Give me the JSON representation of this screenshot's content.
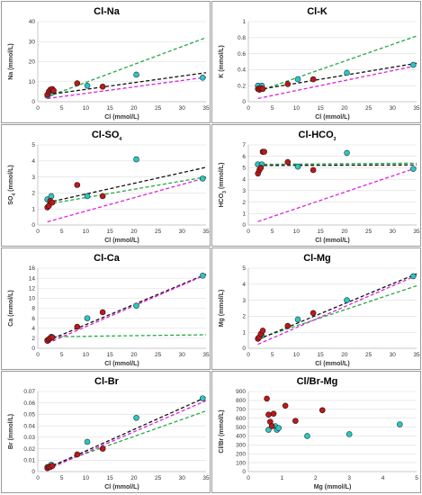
{
  "chart_data": [
    {
      "type": "scatter",
      "title": "Cl-Na",
      "xlabel": "Cl (mmol/L)",
      "ylabel": "Na (mmol/L)",
      "xlim": [
        0,
        35
      ],
      "ylim": [
        0,
        40
      ],
      "xticks": [
        "0",
        "5",
        "10",
        "15",
        "20",
        "25",
        "30",
        "35"
      ],
      "yticks": [
        "0",
        "10",
        "20",
        "30",
        "40"
      ],
      "red_points": [
        [
          2.0,
          3.5
        ],
        [
          2.3,
          5.0
        ],
        [
          2.6,
          6.0
        ],
        [
          3.0,
          6.3
        ],
        [
          3.3,
          5.5
        ],
        [
          8.2,
          9.2
        ],
        [
          13.5,
          7.5
        ]
      ],
      "cyan_points": [
        [
          2.0,
          3.0
        ],
        [
          2.8,
          4.3
        ],
        [
          10.3,
          8.0
        ],
        [
          20.5,
          13.5
        ],
        [
          34.3,
          12.0
        ]
      ],
      "lines": [
        {
          "color": "#22aa44",
          "x": [
            2,
            35
          ],
          "y": [
            2.5,
            32
          ]
        },
        {
          "color": "#111111",
          "x": [
            2,
            35
          ],
          "y": [
            3.5,
            14.5
          ]
        },
        {
          "color": "#dd22dd",
          "x": [
            2,
            35
          ],
          "y": [
            1.6,
            12.2
          ]
        }
      ]
    },
    {
      "type": "scatter",
      "title": "Cl-K",
      "xlabel": "Cl (mmol/L)",
      "ylabel": "K (mmol/L)",
      "xlim": [
        0,
        35
      ],
      "ylim": [
        0,
        1
      ],
      "xticks": [
        "0",
        "5",
        "10",
        "15",
        "20",
        "25",
        "30",
        "35"
      ],
      "yticks": [
        "0",
        "0.2",
        "0.4",
        "0.6",
        "0.8",
        "1"
      ],
      "red_points": [
        [
          2.0,
          0.16
        ],
        [
          2.3,
          0.15
        ],
        [
          2.6,
          0.17
        ],
        [
          3.0,
          0.16
        ],
        [
          8.2,
          0.22
        ],
        [
          13.5,
          0.28
        ]
      ],
      "cyan_points": [
        [
          2.0,
          0.2
        ],
        [
          2.8,
          0.2
        ],
        [
          10.3,
          0.28
        ],
        [
          20.5,
          0.36
        ],
        [
          34.3,
          0.46
        ]
      ],
      "lines": [
        {
          "color": "#22aa44",
          "x": [
            2,
            35
          ],
          "y": [
            0.13,
            0.82
          ]
        },
        {
          "color": "#111111",
          "x": [
            2,
            35
          ],
          "y": [
            0.15,
            0.48
          ]
        },
        {
          "color": "#dd22dd",
          "x": [
            2,
            35
          ],
          "y": [
            0.04,
            0.45
          ]
        }
      ]
    },
    {
      "type": "scatter",
      "title": "Cl-SO4",
      "xlabel": "Cl (mmol/L)",
      "ylabel": "SO4 (mmol/L)",
      "xlim": [
        0,
        35
      ],
      "ylim": [
        0,
        5
      ],
      "xticks": [
        "0",
        "5",
        "10",
        "15",
        "20",
        "25",
        "30",
        "35"
      ],
      "yticks": [
        "0",
        "1",
        "2",
        "3",
        "4",
        "5"
      ],
      "red_points": [
        [
          2.0,
          1.1
        ],
        [
          2.3,
          1.2
        ],
        [
          2.6,
          1.5
        ],
        [
          3.0,
          1.4
        ],
        [
          8.2,
          2.5
        ],
        [
          13.5,
          1.8
        ]
      ],
      "cyan_points": [
        [
          2.0,
          1.6
        ],
        [
          2.8,
          1.8
        ],
        [
          10.3,
          1.8
        ],
        [
          20.5,
          4.1
        ],
        [
          34.3,
          2.9
        ]
      ],
      "lines": [
        {
          "color": "#22aa44",
          "x": [
            2,
            35
          ],
          "y": [
            1.3,
            3.0
          ]
        },
        {
          "color": "#111111",
          "x": [
            2,
            35
          ],
          "y": [
            1.4,
            3.6
          ]
        },
        {
          "color": "#dd22dd",
          "x": [
            2,
            35
          ],
          "y": [
            0.2,
            2.95
          ]
        }
      ]
    },
    {
      "type": "scatter",
      "title": "Cl-HCO3",
      "xlabel": "Cl (mmol/L)",
      "ylabel": "HCO3 (mmol/L)",
      "xlim": [
        0,
        35
      ],
      "ylim": [
        0,
        7
      ],
      "xticks": [
        "0",
        "5",
        "10",
        "15",
        "20",
        "25",
        "30",
        "35"
      ],
      "yticks": [
        "0",
        "1",
        "2",
        "3",
        "4",
        "5",
        "6",
        "7"
      ],
      "red_points": [
        [
          2.0,
          4.5
        ],
        [
          2.3,
          4.8
        ],
        [
          2.6,
          5.0
        ],
        [
          3.0,
          6.4
        ],
        [
          3.3,
          6.4
        ],
        [
          8.2,
          5.5
        ],
        [
          13.5,
          4.8
        ]
      ],
      "cyan_points": [
        [
          2.0,
          5.3
        ],
        [
          2.8,
          5.3
        ],
        [
          10.3,
          5.1
        ],
        [
          20.5,
          6.3
        ],
        [
          34.3,
          4.9
        ]
      ],
      "lines": [
        {
          "color": "#22aa44",
          "x": [
            2,
            35
          ],
          "y": [
            5.3,
            5.4
          ]
        },
        {
          "color": "#111111",
          "x": [
            2,
            35
          ],
          "y": [
            5.2,
            5.25
          ]
        },
        {
          "color": "#dd22dd",
          "x": [
            2,
            35
          ],
          "y": [
            0.3,
            5.0
          ]
        }
      ]
    },
    {
      "type": "scatter",
      "title": "Cl-Ca",
      "xlabel": "Cl (mmol/L)",
      "ylabel": "Ca (mmol/L)",
      "xlim": [
        0,
        35
      ],
      "ylim": [
        0,
        16
      ],
      "xticks": [
        "0",
        "5",
        "10",
        "15",
        "20",
        "25",
        "30",
        "35"
      ],
      "yticks": [
        "0",
        "2",
        "4",
        "6",
        "8",
        "10",
        "12",
        "14",
        "16"
      ],
      "red_points": [
        [
          2.0,
          1.5
        ],
        [
          2.3,
          1.8
        ],
        [
          2.6,
          2.0
        ],
        [
          3.0,
          2.2
        ],
        [
          8.2,
          4.3
        ],
        [
          13.5,
          7.2
        ]
      ],
      "cyan_points": [
        [
          2.0,
          1.6
        ],
        [
          2.8,
          2.3
        ],
        [
          10.3,
          6.0
        ],
        [
          20.5,
          8.5
        ],
        [
          34.3,
          14.5
        ]
      ],
      "lines": [
        {
          "color": "#22aa44",
          "x": [
            2,
            35
          ],
          "y": [
            2.3,
            2.7
          ]
        },
        {
          "color": "#111111",
          "x": [
            2,
            35
          ],
          "y": [
            1.5,
            14.8
          ]
        },
        {
          "color": "#dd22dd",
          "x": [
            2,
            35
          ],
          "y": [
            1.0,
            14.7
          ]
        }
      ]
    },
    {
      "type": "scatter",
      "title": "Cl-Mg",
      "xlabel": "Cl (mmol/L)",
      "ylabel": "Mg (mmol/L)",
      "xlim": [
        0,
        35
      ],
      "ylim": [
        0,
        5
      ],
      "xticks": [
        "0",
        "5",
        "10",
        "15",
        "20",
        "25",
        "30",
        "35"
      ],
      "yticks": [
        "0",
        "1",
        "2",
        "3",
        "4",
        "5"
      ],
      "red_points": [
        [
          2.0,
          0.6
        ],
        [
          2.3,
          0.7
        ],
        [
          2.6,
          0.9
        ],
        [
          3.0,
          1.1
        ],
        [
          8.2,
          1.4
        ],
        [
          13.5,
          2.2
        ]
      ],
      "cyan_points": [
        [
          2.0,
          0.6
        ],
        [
          2.8,
          0.8
        ],
        [
          10.3,
          1.8
        ],
        [
          20.5,
          3.0
        ],
        [
          34.3,
          4.5
        ]
      ],
      "lines": [
        {
          "color": "#22aa44",
          "x": [
            2,
            35
          ],
          "y": [
            0.6,
            3.9
          ]
        },
        {
          "color": "#111111",
          "x": [
            2,
            35
          ],
          "y": [
            0.55,
            4.65
          ]
        },
        {
          "color": "#dd22dd",
          "x": [
            2,
            35
          ],
          "y": [
            0.25,
            4.55
          ]
        }
      ]
    },
    {
      "type": "scatter",
      "title": "Cl-Br",
      "xlabel": "Cl (mmol/L)",
      "ylabel": "Br (mmol/L)",
      "xlim": [
        0,
        35
      ],
      "ylim": [
        0,
        0.07
      ],
      "xticks": [
        "0",
        "5",
        "10",
        "15",
        "20",
        "25",
        "30",
        "35"
      ],
      "yticks": [
        "0",
        "0.01",
        "0.02",
        "0.03",
        "0.04",
        "0.05",
        "0.06",
        "0.07"
      ],
      "red_points": [
        [
          2.0,
          0.003
        ],
        [
          2.3,
          0.004
        ],
        [
          2.6,
          0.004
        ],
        [
          3.0,
          0.005
        ],
        [
          8.2,
          0.015
        ],
        [
          13.5,
          0.02
        ]
      ],
      "cyan_points": [
        [
          2.0,
          0.004
        ],
        [
          2.8,
          0.006
        ],
        [
          10.3,
          0.026
        ],
        [
          20.5,
          0.047
        ],
        [
          34.3,
          0.064
        ]
      ],
      "lines": [
        {
          "color": "#22aa44",
          "x": [
            2,
            35
          ],
          "y": [
            0.004,
            0.053
          ]
        },
        {
          "color": "#111111",
          "x": [
            2,
            35
          ],
          "y": [
            0.003,
            0.065
          ]
        },
        {
          "color": "#dd22dd",
          "x": [
            2,
            35
          ],
          "y": [
            0.002,
            0.062
          ]
        }
      ]
    },
    {
      "type": "scatter",
      "title": "Cl/Br-Mg",
      "xlabel": "Mg (mmol/L)",
      "ylabel": "Cl/Br (mmol/L)",
      "xlim": [
        0,
        5
      ],
      "ylim": [
        0,
        900
      ],
      "xticks": [
        "0",
        "1",
        "2",
        "3",
        "4",
        "5"
      ],
      "yticks": [
        "0",
        "100",
        "200",
        "300",
        "400",
        "500",
        "600",
        "700",
        "800",
        "900"
      ],
      "red_points": [
        [
          0.55,
          820
        ],
        [
          0.6,
          640
        ],
        [
          0.65,
          560
        ],
        [
          0.7,
          510
        ],
        [
          0.75,
          650
        ],
        [
          1.1,
          740
        ],
        [
          1.4,
          570
        ],
        [
          2.2,
          690
        ]
      ],
      "cyan_points": [
        [
          0.6,
          470
        ],
        [
          0.8,
          510
        ],
        [
          0.85,
          470
        ],
        [
          0.9,
          490
        ],
        [
          1.75,
          400
        ],
        [
          3.0,
          420
        ],
        [
          4.5,
          530
        ]
      ],
      "lines": []
    }
  ]
}
